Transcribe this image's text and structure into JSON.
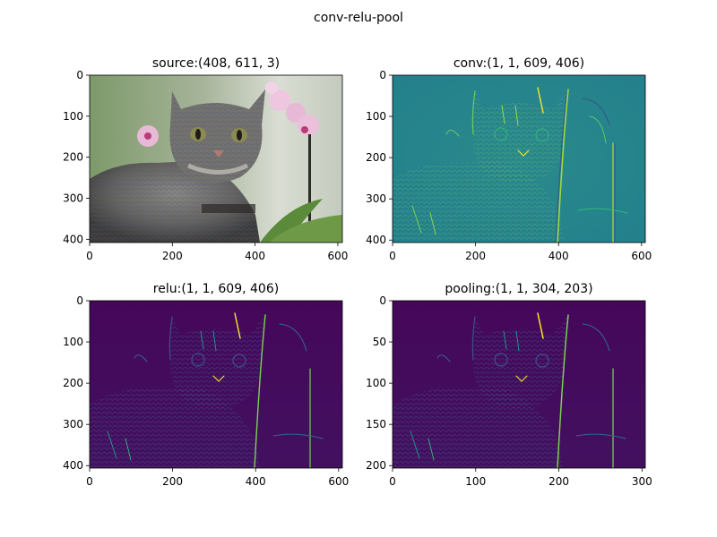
{
  "figure": {
    "suptitle": "conv-relu-pool"
  },
  "palette": {
    "cat_fur": "#6d6a66",
    "cat_dark": "#3e3b38",
    "bg_green": "#7d9a6a",
    "orchid": "#e8b9d6",
    "orchid_center": "#b83d7a",
    "viridis_teal": "#26878d",
    "viridis_purple": "#440154",
    "viridis_yellow": "#fde725",
    "viridis_green": "#5ec962",
    "axis_color": "#000000"
  },
  "chart_data": [
    {
      "type": "image",
      "title": "source:(408, 611, 3)",
      "colormap": "rgb photo",
      "xlim": [
        0,
        611
      ],
      "ylim": [
        408,
        0
      ],
      "xticks": [
        0,
        200,
        400,
        600
      ],
      "yticks": [
        0,
        100,
        200,
        300,
        400
      ],
      "grid": false
    },
    {
      "type": "heatmap",
      "title": "conv:(1, 1, 609, 406)",
      "colormap": "viridis",
      "xlim": [
        0,
        609
      ],
      "ylim": [
        406,
        0
      ],
      "xticks": [
        0,
        200,
        400,
        600
      ],
      "yticks": [
        0,
        100,
        200,
        300,
        400
      ],
      "grid": false
    },
    {
      "type": "heatmap",
      "title": "relu:(1, 1, 609, 406)",
      "colormap": "viridis",
      "xlim": [
        0,
        609
      ],
      "ylim": [
        406,
        0
      ],
      "xticks": [
        0,
        200,
        400,
        600
      ],
      "yticks": [
        0,
        100,
        200,
        300,
        400
      ],
      "grid": false
    },
    {
      "type": "heatmap",
      "title": "pooling:(1, 1, 304, 203)",
      "colormap": "viridis",
      "xlim": [
        0,
        304
      ],
      "ylim": [
        203,
        0
      ],
      "xticks": [
        0,
        100,
        200,
        300
      ],
      "yticks": [
        0,
        50,
        100,
        150,
        200
      ],
      "grid": false
    }
  ]
}
